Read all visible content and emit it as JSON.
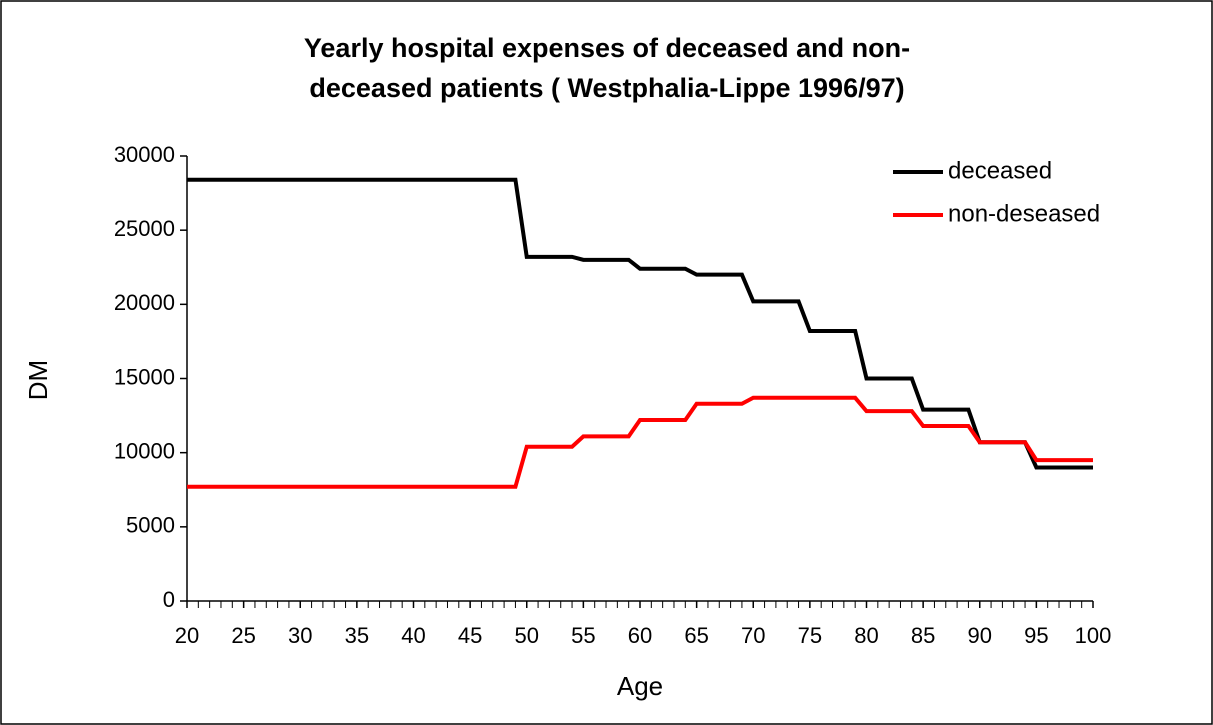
{
  "chart_data": {
    "type": "line",
    "title": "Yearly hospital expenses of deceased and non-deceased patients ( Westphalia-Lippe 1996/97)",
    "x_label": "Age",
    "y_label": "DM",
    "x": [
      20,
      49,
      50,
      54,
      55,
      59,
      60,
      64,
      65,
      69,
      70,
      74,
      75,
      79,
      80,
      84,
      85,
      89,
      90,
      94,
      95,
      100
    ],
    "series": [
      {
        "name": "deceased",
        "color": "#000000",
        "values": [
          28400,
          28400,
          23200,
          23200,
          23000,
          23000,
          22400,
          22400,
          22000,
          22000,
          20200,
          20200,
          18200,
          18200,
          15000,
          15000,
          12900,
          12900,
          10700,
          10700,
          9000,
          9000
        ]
      },
      {
        "name": "non-deseased",
        "color": "#ff0000",
        "values": [
          7700,
          7700,
          10400,
          10400,
          11100,
          11100,
          12200,
          12200,
          13300,
          13300,
          13700,
          13700,
          13700,
          13700,
          12800,
          12800,
          11800,
          11800,
          10700,
          10700,
          9500,
          9500
        ]
      }
    ],
    "xlim": [
      20,
      100
    ],
    "xticks": [
      20,
      25,
      30,
      35,
      40,
      45,
      50,
      55,
      60,
      65,
      70,
      75,
      80,
      85,
      90,
      95,
      100
    ],
    "ylim": [
      0,
      30000
    ],
    "yticks": [
      0,
      5000,
      10000,
      15000,
      20000,
      25000,
      30000
    ],
    "grid": false,
    "legend": "upper right"
  }
}
